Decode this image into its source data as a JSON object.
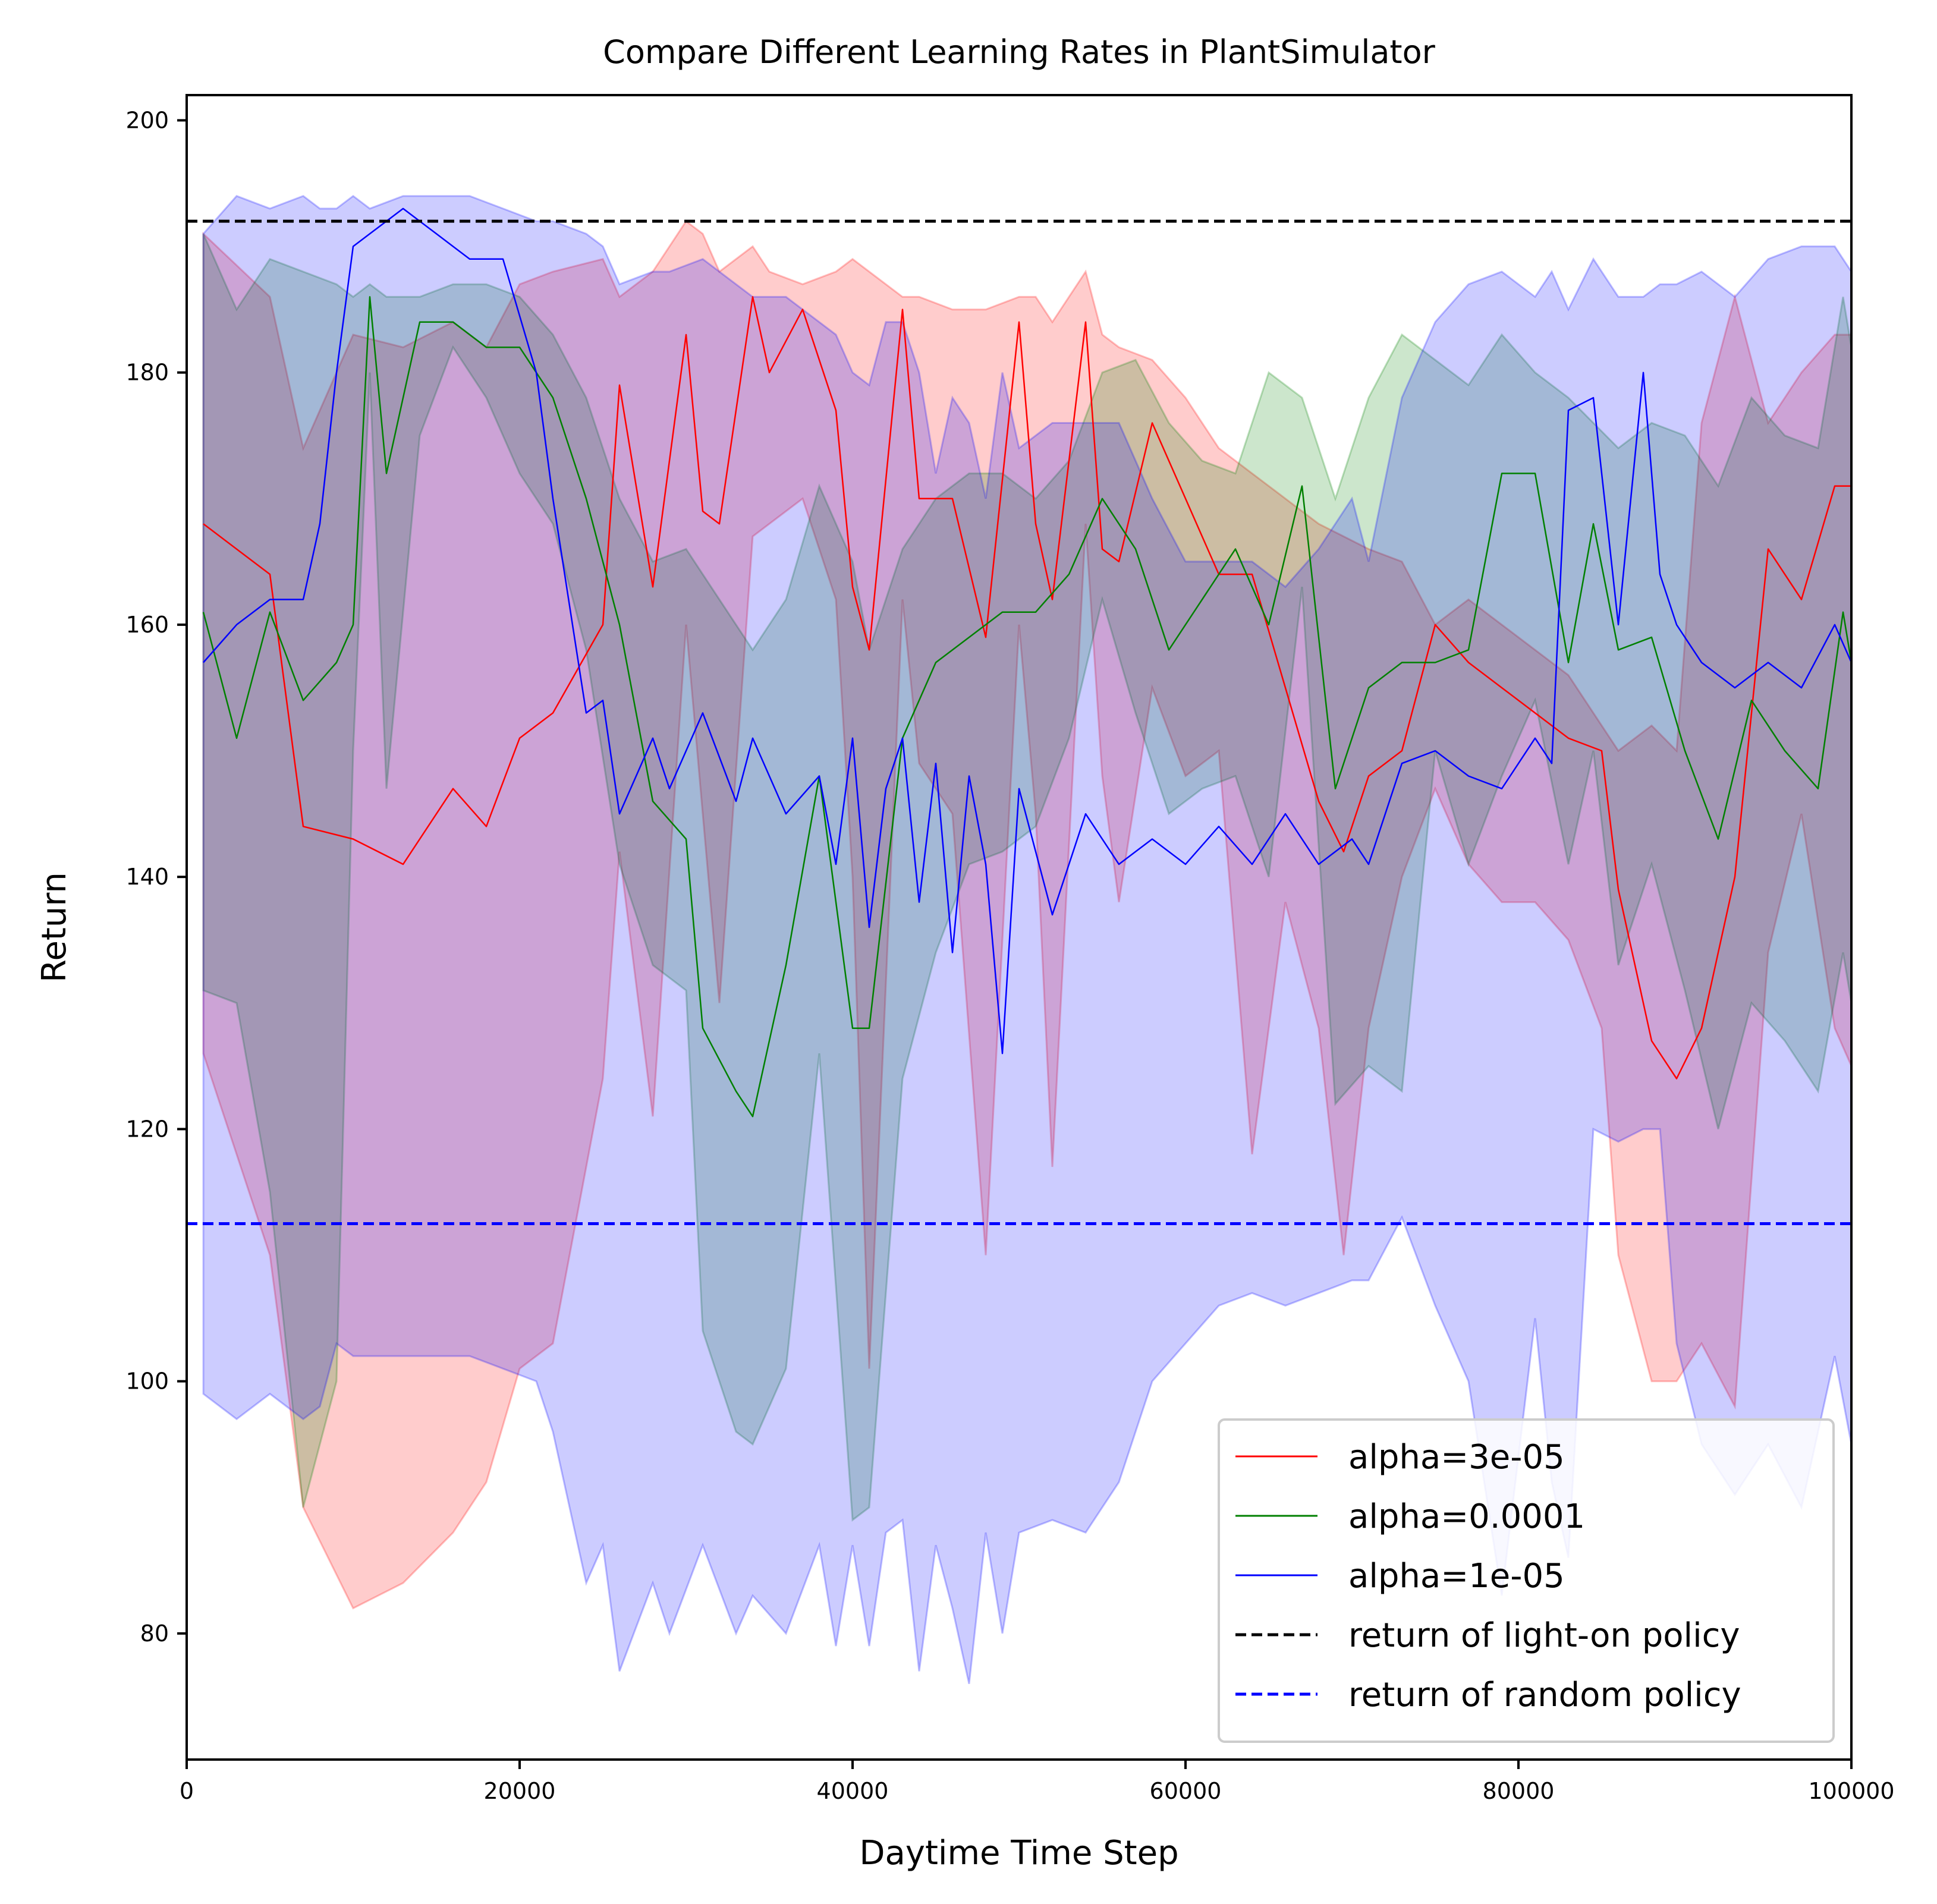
{
  "chart_data": {
    "type": "line",
    "title": "Compare Different Learning Rates in PlantSimulator",
    "xlabel": "Daytime Time Step",
    "ylabel": "Return",
    "xlim": [
      0,
      100000
    ],
    "ylim": [
      70,
      202
    ],
    "xticks": [
      0,
      20000,
      40000,
      60000,
      80000,
      100000
    ],
    "xtick_labels": [
      "0",
      "20000",
      "40000",
      "60000",
      "80000",
      "100000"
    ],
    "yticks": [
      80,
      100,
      120,
      140,
      160,
      180,
      200
    ],
    "ytick_labels": [
      "80",
      "100",
      "120",
      "140",
      "160",
      "180",
      "200"
    ],
    "grid": false,
    "legend_position": "lower-right",
    "series": [
      {
        "name": "alpha=3e-05",
        "color": "#ff0000",
        "style": "solid",
        "x": [
          1000,
          5000,
          7000,
          10000,
          13000,
          16000,
          18000,
          20000,
          22000,
          25000,
          26000,
          28000,
          30000,
          31000,
          32000,
          34000,
          35000,
          37000,
          39000,
          40000,
          41000,
          43000,
          44000,
          46000,
          48000,
          50000,
          51000,
          52000,
          54000,
          55000,
          56000,
          58000,
          60000,
          62000,
          64000,
          66000,
          68000,
          69500,
          71000,
          73000,
          75000,
          77000,
          79000,
          81000,
          83000,
          85000,
          86000,
          88000,
          89500,
          91000,
          93000,
          95000,
          97000,
          99000,
          100000
        ],
        "y": [
          168,
          164,
          144,
          143,
          141,
          147,
          144,
          151,
          153,
          160,
          179,
          163,
          183,
          169,
          168,
          186,
          180,
          185,
          177,
          163,
          158,
          185,
          170,
          170,
          159,
          184,
          168,
          162,
          184,
          166,
          165,
          176,
          170,
          164,
          164,
          155,
          146,
          142,
          148,
          150,
          160,
          157,
          155,
          153,
          151,
          150,
          139,
          127,
          124,
          128,
          140,
          166,
          162,
          171,
          171
        ],
        "band_upper": [
          191,
          186,
          174,
          183,
          182,
          184,
          182,
          187,
          188,
          189,
          186,
          188,
          192,
          191,
          188,
          190,
          188,
          187,
          188,
          189,
          188,
          186,
          186,
          185,
          185,
          186,
          186,
          184,
          188,
          183,
          182,
          181,
          178,
          174,
          172,
          170,
          168,
          167,
          166,
          165,
          160,
          162,
          160,
          158,
          156,
          152,
          150,
          152,
          150,
          176,
          186,
          176,
          180,
          183,
          183
        ],
        "band_lower": [
          126,
          110,
          90,
          82,
          84,
          88,
          92,
          101,
          103,
          124,
          142,
          121,
          160,
          145,
          130,
          167,
          168,
          170,
          162,
          140,
          101,
          162,
          149,
          145,
          110,
          160,
          145,
          117,
          168,
          148,
          138,
          155,
          148,
          150,
          118,
          138,
          128,
          110,
          128,
          140,
          147,
          141,
          138,
          138,
          135,
          128,
          110,
          100,
          100,
          103,
          98,
          134,
          145,
          128,
          125
        ]
      },
      {
        "name": "alpha=0.0001",
        "color": "#008000",
        "style": "solid",
        "x": [
          1000,
          3000,
          5000,
          7000,
          9000,
          10000,
          11000,
          12000,
          14000,
          16000,
          18000,
          20000,
          22000,
          24000,
          26000,
          28000,
          30000,
          31000,
          33000,
          34000,
          36000,
          38000,
          40000,
          41000,
          43000,
          45000,
          47000,
          49000,
          51000,
          53000,
          55000,
          57000,
          59000,
          61000,
          63000,
          65000,
          67000,
          69000,
          71000,
          73000,
          75000,
          77000,
          79000,
          81000,
          83000,
          84500,
          86000,
          88000,
          90000,
          92000,
          94000,
          96000,
          98000,
          99500,
          100000
        ],
        "y": [
          161,
          151,
          161,
          154,
          157,
          160,
          186,
          172,
          184,
          184,
          182,
          182,
          178,
          170,
          160,
          146,
          143,
          128,
          123,
          121,
          133,
          148,
          128,
          128,
          151,
          157,
          159,
          161,
          161,
          164,
          170,
          166,
          158,
          162,
          166,
          160,
          171,
          147,
          155,
          157,
          157,
          158,
          172,
          172,
          157,
          168,
          158,
          159,
          150,
          143,
          154,
          150,
          147,
          161,
          157
        ],
        "band_upper": [
          191,
          185,
          189,
          188,
          187,
          186,
          187,
          186,
          186,
          187,
          187,
          186,
          183,
          178,
          170,
          165,
          166,
          164,
          160,
          158,
          162,
          171,
          165,
          158,
          166,
          170,
          172,
          172,
          170,
          173,
          180,
          181,
          176,
          173,
          172,
          180,
          178,
          170,
          178,
          183,
          181,
          179,
          183,
          180,
          178,
          176,
          174,
          176,
          175,
          171,
          178,
          175,
          174,
          186,
          182
        ],
        "band_lower": [
          131,
          130,
          115,
          90,
          100,
          150,
          180,
          147,
          175,
          182,
          178,
          172,
          168,
          158,
          141,
          133,
          131,
          104,
          96,
          95,
          101,
          126,
          89,
          90,
          124,
          134,
          141,
          142,
          144,
          151,
          162,
          153,
          145,
          147,
          148,
          140,
          163,
          122,
          125,
          123,
          150,
          141,
          148,
          154,
          141,
          150,
          133,
          141,
          131,
          120,
          130,
          127,
          123,
          134,
          130
        ]
      },
      {
        "name": "alpha=1e-05",
        "color": "#0000ff",
        "style": "solid",
        "x": [
          1000,
          3000,
          5000,
          7000,
          8000,
          9000,
          10000,
          11000,
          13000,
          15000,
          17000,
          19000,
          21000,
          22000,
          24000,
          25000,
          26000,
          28000,
          29000,
          31000,
          33000,
          34000,
          36000,
          38000,
          39000,
          40000,
          41000,
          42000,
          43000,
          44000,
          45000,
          46000,
          47000,
          48000,
          49000,
          50000,
          52000,
          54000,
          56000,
          58000,
          60000,
          62000,
          64000,
          66000,
          68000,
          70000,
          71000,
          73000,
          75000,
          77000,
          79000,
          81000,
          82000,
          83000,
          84500,
          86000,
          87500,
          88500,
          89500,
          91000,
          93000,
          95000,
          97000,
          99000,
          100000
        ],
        "y": [
          157,
          160,
          162,
          162,
          168,
          180,
          190,
          191,
          193,
          191,
          189,
          189,
          180,
          170,
          153,
          154,
          145,
          151,
          147,
          153,
          146,
          151,
          145,
          148,
          141,
          151,
          136,
          147,
          151,
          138,
          149,
          134,
          148,
          141,
          126,
          147,
          137,
          145,
          141,
          143,
          141,
          144,
          141,
          145,
          141,
          143,
          141,
          149,
          150,
          148,
          147,
          151,
          149,
          177,
          178,
          160,
          180,
          164,
          160,
          157,
          155,
          157,
          155,
          160,
          157
        ],
        "band_upper": [
          191,
          194,
          193,
          194,
          193,
          193,
          194,
          193,
          194,
          194,
          194,
          193,
          192,
          192,
          191,
          190,
          187,
          188,
          188,
          189,
          187,
          186,
          186,
          184,
          183,
          180,
          179,
          184,
          184,
          180,
          172,
          178,
          176,
          170,
          180,
          174,
          176,
          176,
          176,
          170,
          165,
          165,
          165,
          163,
          166,
          170,
          165,
          178,
          184,
          187,
          188,
          186,
          188,
          185,
          189,
          186,
          186,
          187,
          187,
          188,
          186,
          189,
          190,
          190,
          188
        ],
        "band_lower": [
          99,
          97,
          99,
          97,
          98,
          103,
          102,
          102,
          102,
          102,
          102,
          101,
          100,
          96,
          84,
          87,
          77,
          84,
          80,
          87,
          80,
          83,
          80,
          87,
          79,
          87,
          79,
          88,
          89,
          77,
          87,
          82,
          76,
          88,
          80,
          88,
          89,
          88,
          92,
          100,
          103,
          106,
          107,
          106,
          107,
          108,
          108,
          113,
          106,
          100,
          83,
          105,
          92,
          86,
          120,
          119,
          120,
          120,
          103,
          95,
          91,
          95,
          90,
          102,
          95
        ]
      },
      {
        "name": "return of light-on policy",
        "color": "#000000",
        "style": "dashed",
        "x": [
          0,
          100000
        ],
        "y": [
          192,
          192
        ]
      },
      {
        "name": "return of random policy",
        "color": "#0000ff",
        "style": "dashed",
        "x": [
          0,
          100000
        ],
        "y": [
          112.5,
          112.5
        ]
      }
    ]
  }
}
